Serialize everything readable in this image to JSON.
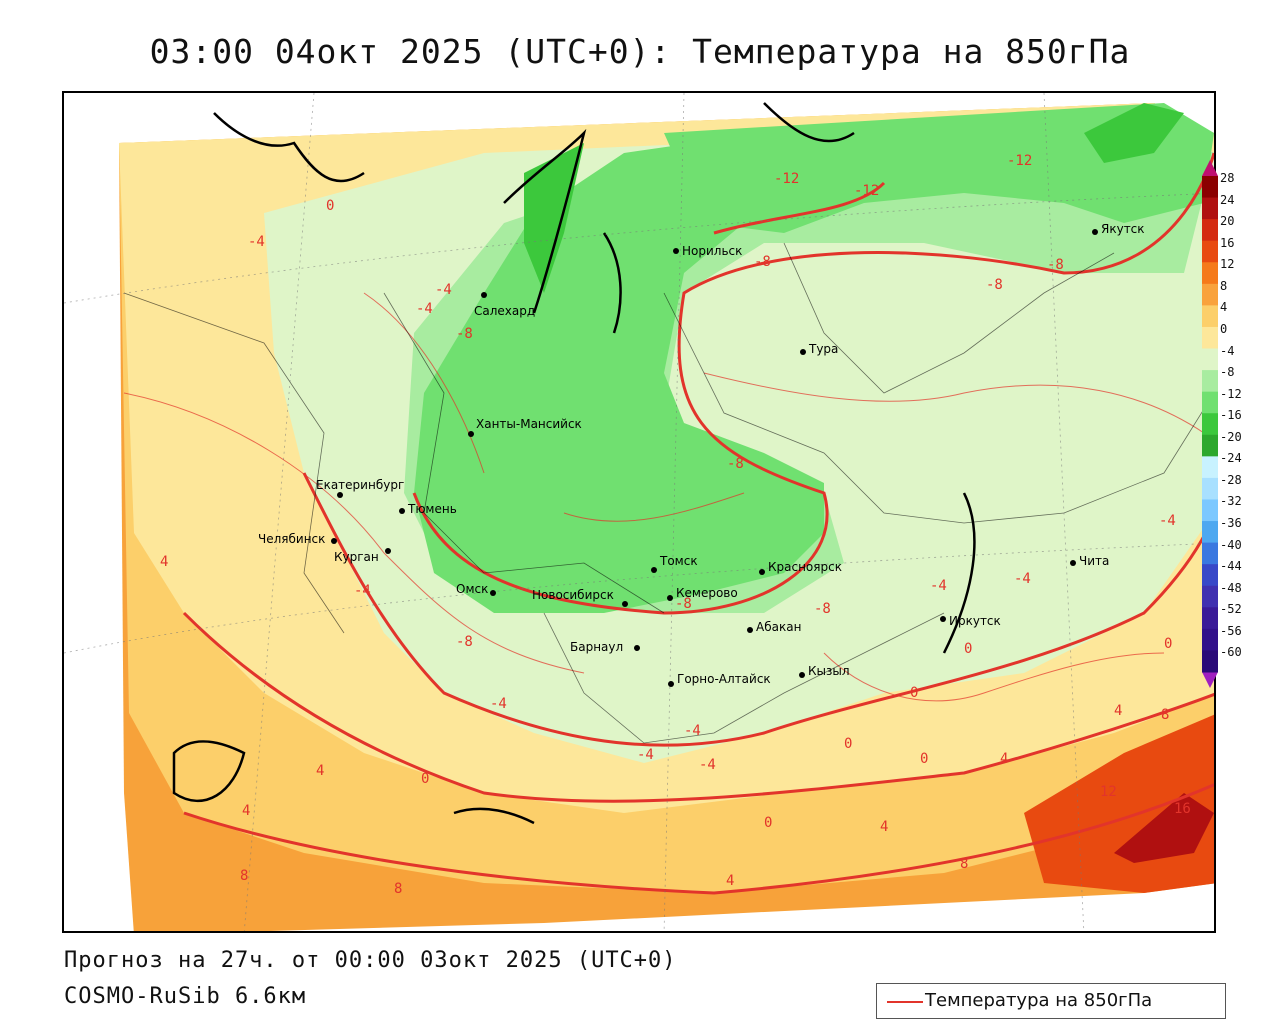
{
  "title": "03:00 04окт 2025 (UTC+0): Температура на 850гПа",
  "footer": {
    "forecast": "Прогноз на 27ч. от 00:00 03окт 2025 (UTC+0)",
    "model": "COSMO-RuSib 6.6км"
  },
  "legend": {
    "label": "Температура на 850гПа",
    "line_color": "#e2342b"
  },
  "colorbar": {
    "ticks": [
      "28",
      "24",
      "20",
      "16",
      "12",
      "8",
      "4",
      "0",
      "-4",
      "-8",
      "-12",
      "-16",
      "-20",
      "-24",
      "-28",
      "-32",
      "-36",
      "-40",
      "-44",
      "-48",
      "-52",
      "-56",
      "-60"
    ],
    "colors": [
      "#8b0000",
      "#b01010",
      "#d42a10",
      "#e84a10",
      "#f57a1a",
      "#f9a23c",
      "#fccf6a",
      "#fde79a",
      "#dff5c8",
      "#a8eca0",
      "#70e070",
      "#3cc83c",
      "#2da82d",
      "#c8f2ff",
      "#a8e0ff",
      "#7cc8ff",
      "#4ea8f0",
      "#3a78e0",
      "#3848c8",
      "#4030b0",
      "#3a1a98",
      "#32108a",
      "#2a0a78"
    ]
  },
  "cities": [
    {
      "name": "Салехард"
    },
    {
      "name": "Норильск"
    },
    {
      "name": "Якутск"
    },
    {
      "name": "Тура"
    },
    {
      "name": "Ханты-Мансийск"
    },
    {
      "name": "Екатеринбург"
    },
    {
      "name": "Тюмень"
    },
    {
      "name": "Челябинск"
    },
    {
      "name": "Курган"
    },
    {
      "name": "Омск"
    },
    {
      "name": "Томск"
    },
    {
      "name": "Красноярск"
    },
    {
      "name": "Новосибирск"
    },
    {
      "name": "Кемерово"
    },
    {
      "name": "Абакан"
    },
    {
      "name": "Иркутск"
    },
    {
      "name": "Чита"
    },
    {
      "name": "Барнаул"
    },
    {
      "name": "Кызыл"
    },
    {
      "name": "Горно-Алтайск"
    }
  ],
  "isotherm_labels": [
    "0",
    "-4",
    "-4",
    "-4",
    "-8",
    "-12",
    "-12",
    "-12",
    "-8",
    "-8",
    "-8",
    "-8",
    "-8",
    "-8",
    "-8",
    "-4",
    "-4",
    "-4",
    "-4",
    "-4",
    "-4",
    "-4",
    "-4",
    "0",
    "0",
    "0",
    "0",
    "0",
    "0",
    "4",
    "4",
    "4",
    "4",
    "4",
    "4",
    "8",
    "8",
    "8",
    "8",
    "12",
    "16",
    "4",
    "0"
  ]
}
